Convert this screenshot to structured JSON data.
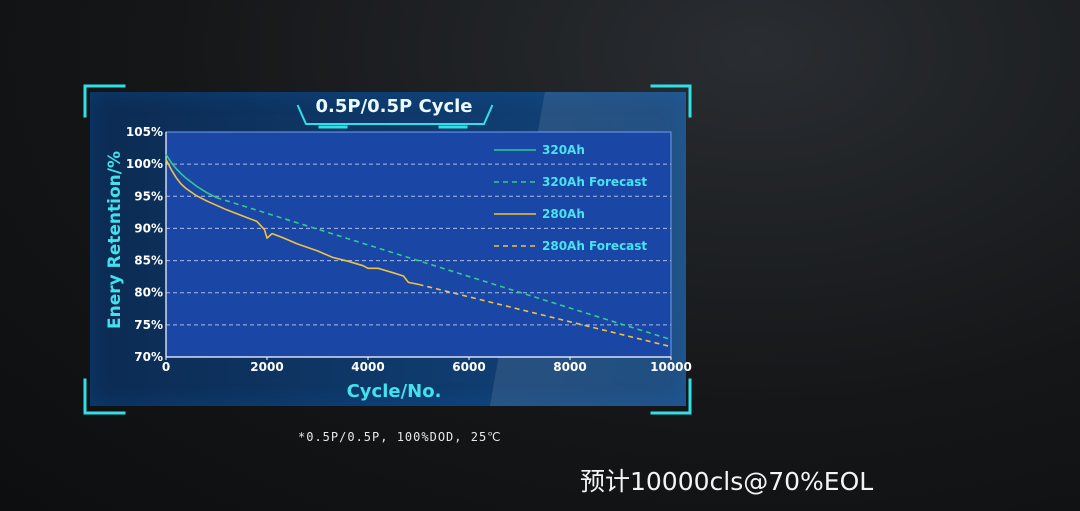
{
  "colors": {
    "frame": "#2fe0e8",
    "plot_bg": "#1a47a6",
    "axis_text": "#ffffff",
    "axis_label": "#41e2ee",
    "legend_text": "#47e3ef",
    "series_320": "#35c98c",
    "series_280": "#f0c142"
  },
  "chart_data": {
    "type": "line",
    "title": "0.5P/0.5P Cycle",
    "xlabel": "Cycle/No.",
    "ylabel": "Enery Retention/%",
    "xlim": [
      0,
      10000
    ],
    "ylim": [
      70,
      105
    ],
    "x_ticks": [
      0,
      2000,
      4000,
      6000,
      8000,
      10000
    ],
    "y_ticks": [
      70,
      75,
      80,
      85,
      90,
      95,
      100,
      105
    ],
    "x_tick_labels": [
      "0",
      "2000",
      "4000",
      "6000",
      "8000",
      "10000"
    ],
    "y_tick_labels": [
      "70%",
      "75%",
      "80%",
      "85%",
      "90%",
      "95%",
      "100%",
      "105%"
    ],
    "grid": "horizontal dashed",
    "legend_position": "top-right",
    "series": [
      {
        "name": "320Ah",
        "style": "solid",
        "color": "#35c98c",
        "x": [
          0,
          100,
          200,
          300,
          400,
          600,
          800,
          1000
        ],
        "y": [
          101.5,
          100.3,
          99.3,
          98.5,
          97.8,
          96.6,
          95.6,
          94.8
        ]
      },
      {
        "name": "320Ah Forecast",
        "style": "dashed",
        "color": "#35c98c",
        "x": [
          1000,
          10000
        ],
        "y": [
          94.8,
          72.7
        ]
      },
      {
        "name": "280Ah",
        "style": "solid",
        "color": "#f0c142",
        "x": [
          0,
          100,
          200,
          300,
          400,
          600,
          800,
          1000,
          1200,
          1500,
          1800,
          1950,
          2000,
          2100,
          2300,
          2600,
          3000,
          3300,
          3600,
          3900,
          4000,
          4200,
          4500,
          4700,
          4800,
          5000
        ],
        "y": [
          100.7,
          99.2,
          97.9,
          96.9,
          96.2,
          95.1,
          94.3,
          93.6,
          92.9,
          92.0,
          91.1,
          89.8,
          88.5,
          89.2,
          88.6,
          87.6,
          86.5,
          85.5,
          84.9,
          84.2,
          83.8,
          83.8,
          83.1,
          82.6,
          81.6,
          81.3
        ]
      },
      {
        "name": "280Ah Forecast",
        "style": "dashed",
        "color": "#f0c142",
        "x": [
          5000,
          10000
        ],
        "y": [
          81.3,
          71.6
        ]
      }
    ],
    "footnote": "*0.5P/0.5P, 100%DOD, 25℃"
  },
  "caption": "预计10000cls@70%EOL"
}
